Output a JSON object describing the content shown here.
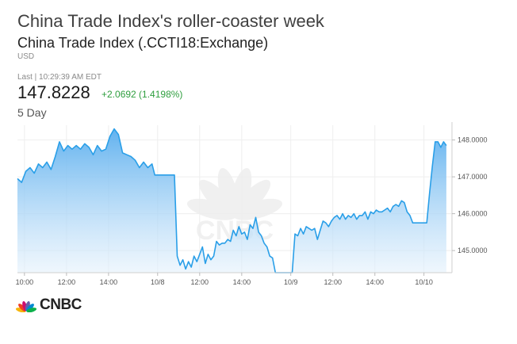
{
  "header": {
    "headline": "China Trade Index's roller-coaster week",
    "instrument": "China Trade Index (.CCTI18:Exchange)",
    "currency": "USD",
    "last_line": "Last | 10:29:39 AM EDT",
    "price": "147.8228",
    "change": "+2.0692 (1.4198%)",
    "period": "5 Day"
  },
  "brand": {
    "logo_text": "CNBC",
    "watermark_text": "CNBC",
    "peacock_colors": [
      "#f6b60b",
      "#ef4023",
      "#cc0e6f",
      "#6460aa",
      "#0089d0",
      "#0db14b"
    ]
  },
  "colors": {
    "line": "#2a9fe8",
    "fill_top": "#5aaeee",
    "fill_bottom": "#e4f1fc",
    "positive": "#2e9e3e"
  },
  "chart_data": {
    "type": "area",
    "grid": true,
    "ylim": [
      144.4,
      148.4
    ],
    "y_ticks": [
      145,
      146,
      147,
      148
    ],
    "y_tick_labels": [
      "145.0000",
      "146.0000",
      "147.0000",
      "148.0000"
    ],
    "x_ticks": [
      0.5,
      3.5,
      6.5,
      10,
      13,
      16,
      19.5,
      22.5,
      25.5,
      29
    ],
    "x_tick_labels": [
      "10:00",
      "12:00",
      "14:00",
      "10/8",
      "12:00",
      "14:00",
      "10/9",
      "12:00",
      "14:00",
      "10/10"
    ],
    "xlim": [
      0,
      31
    ],
    "x": [
      0,
      0.3,
      0.6,
      0.9,
      1.2,
      1.5,
      1.8,
      2.1,
      2.4,
      2.7,
      3.0,
      3.3,
      3.6,
      3.9,
      4.2,
      4.5,
      4.8,
      5.1,
      5.4,
      5.7,
      6.0,
      6.3,
      6.6,
      6.9,
      7.2,
      7.5,
      7.8,
      8.1,
      8.4,
      8.7,
      9.0,
      9.3,
      9.6,
      9.8,
      10.0,
      10.2,
      10.4,
      10.6,
      10.8,
      11.0,
      11.2,
      11.4,
      11.6,
      11.8,
      12.0,
      12.2,
      12.4,
      12.6,
      12.8,
      13.0,
      13.2,
      13.4,
      13.6,
      13.8,
      14.0,
      14.2,
      14.4,
      14.6,
      14.8,
      15.0,
      15.2,
      15.4,
      15.6,
      15.8,
      16.0,
      16.2,
      16.4,
      16.6,
      16.8,
      17.0,
      17.2,
      17.4,
      17.6,
      17.8,
      18.0,
      18.2,
      18.4,
      18.6,
      18.8,
      19.0,
      19.2,
      19.4,
      19.6,
      19.8,
      20.0,
      20.2,
      20.4,
      20.6,
      20.8,
      21.0,
      21.2,
      21.4,
      21.6,
      21.8,
      22.0,
      22.2,
      22.4,
      22.6,
      22.8,
      23.0,
      23.2,
      23.4,
      23.6,
      23.8,
      24.0,
      24.2,
      24.4,
      24.6,
      24.8,
      25.0,
      25.2,
      25.4,
      25.6,
      25.8,
      26.0,
      26.2,
      26.4,
      26.6,
      26.8,
      27.0,
      27.2,
      27.4,
      27.6,
      27.8,
      28.0,
      28.2,
      28.4,
      28.6,
      28.8,
      29.0,
      29.2,
      29.4,
      29.6,
      29.8,
      30.0,
      30.2,
      30.4,
      30.6
    ],
    "series": [
      {
        "values": [
          146.95,
          146.85,
          147.15,
          147.25,
          147.1,
          147.35,
          147.25,
          147.4,
          147.2,
          147.55,
          147.95,
          147.7,
          147.85,
          147.75,
          147.85,
          147.75,
          147.9,
          147.8,
          147.6,
          147.85,
          147.7,
          147.75,
          148.1,
          148.3,
          148.15,
          147.65,
          147.6,
          147.55,
          147.45,
          147.25,
          147.4,
          147.25,
          147.35,
          147.05,
          147.05,
          147.05,
          147.05,
          147.05,
          147.05,
          147.05,
          147.05,
          144.85,
          144.6,
          144.75,
          144.5,
          144.7,
          144.55,
          144.85,
          144.7,
          144.9,
          145.1,
          144.65,
          144.9,
          144.75,
          144.85,
          145.25,
          145.15,
          145.2,
          145.2,
          145.3,
          145.25,
          145.55,
          145.4,
          145.65,
          145.45,
          145.5,
          145.3,
          145.7,
          145.6,
          145.9,
          145.5,
          145.4,
          145.2,
          145.1,
          144.85,
          144.8,
          144.4,
          144.4,
          144.4,
          144.4,
          144.4,
          144.4,
          144.4,
          145.45,
          145.4,
          145.6,
          145.45,
          145.65,
          145.6,
          145.55,
          145.6,
          145.3,
          145.55,
          145.8,
          145.75,
          145.65,
          145.8,
          145.9,
          145.95,
          145.85,
          146.0,
          145.85,
          145.95,
          145.9,
          146.0,
          145.85,
          145.95,
          145.95,
          146.05,
          145.85,
          146.05,
          146.0,
          146.1,
          146.05,
          146.05,
          146.1,
          146.15,
          146.05,
          146.2,
          146.25,
          146.2,
          146.35,
          146.3,
          146.05,
          145.95,
          145.75,
          145.75,
          145.75,
          145.75,
          145.75,
          145.75,
          146.55,
          147.3,
          147.95,
          147.95,
          147.8,
          147.95,
          147.85
        ]
      }
    ]
  }
}
